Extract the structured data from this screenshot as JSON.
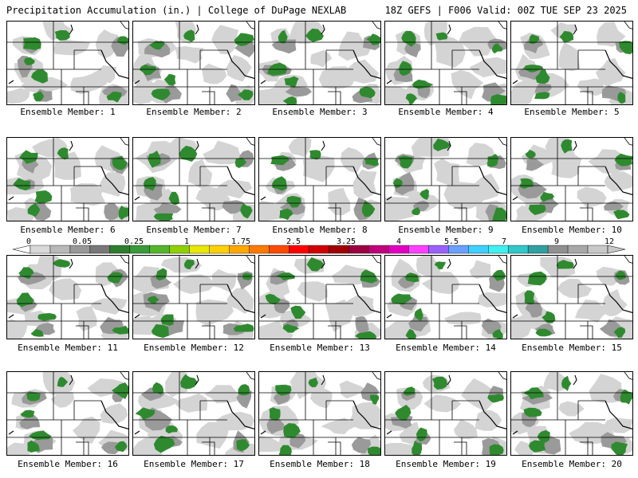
{
  "header": {
    "title_left": "Precipitation Accumulation (in.) | College of DuPage NEXLAB",
    "title_right": "18Z GEFS | F006 Valid: 00Z TUE SEP 23 2025"
  },
  "legend": {
    "tick_labels": [
      "0",
      "0.05",
      "0.25",
      "1",
      "1.75",
      "2.5",
      "3.25",
      "4",
      "5.5",
      "7",
      "9",
      "12"
    ],
    "colors": [
      "#d9d9d9",
      "#b8b8b8",
      "#989898",
      "#787878",
      "#2f7d2f",
      "#3a9a3a",
      "#56b42a",
      "#8fd000",
      "#e8e800",
      "#ffd000",
      "#ffa800",
      "#ff7a00",
      "#ff4a00",
      "#ff0000",
      "#d00000",
      "#a00000",
      "#9a0040",
      "#c0007a",
      "#e000c0",
      "#ff40ff",
      "#9a60ff",
      "#6aa0ff",
      "#40d0ff",
      "#40f0f0",
      "#30c8c8",
      "#30a0a0",
      "#909090",
      "#a8a8a8",
      "#c8c8c8"
    ]
  },
  "panels": [
    {
      "label": "Ensemble Member: 1"
    },
    {
      "label": "Ensemble Member: 2"
    },
    {
      "label": "Ensemble Member: 3"
    },
    {
      "label": "Ensemble Member: 4"
    },
    {
      "label": "Ensemble Member: 5"
    },
    {
      "label": "Ensemble Member: 6"
    },
    {
      "label": "Ensemble Member: 7"
    },
    {
      "label": "Ensemble Member: 8"
    },
    {
      "label": "Ensemble Member: 9"
    },
    {
      "label": "Ensemble Member: 10"
    },
    {
      "label": "Ensemble Member: 11"
    },
    {
      "label": "Ensemble Member: 12"
    },
    {
      "label": "Ensemble Member: 13"
    },
    {
      "label": "Ensemble Member: 14"
    },
    {
      "label": "Ensemble Member: 15"
    },
    {
      "label": "Ensemble Member: 16"
    },
    {
      "label": "Ensemble Member: 17"
    },
    {
      "label": "Ensemble Member: 18"
    },
    {
      "label": "Ensemble Member: 19"
    },
    {
      "label": "Ensemble Member: 20"
    }
  ]
}
